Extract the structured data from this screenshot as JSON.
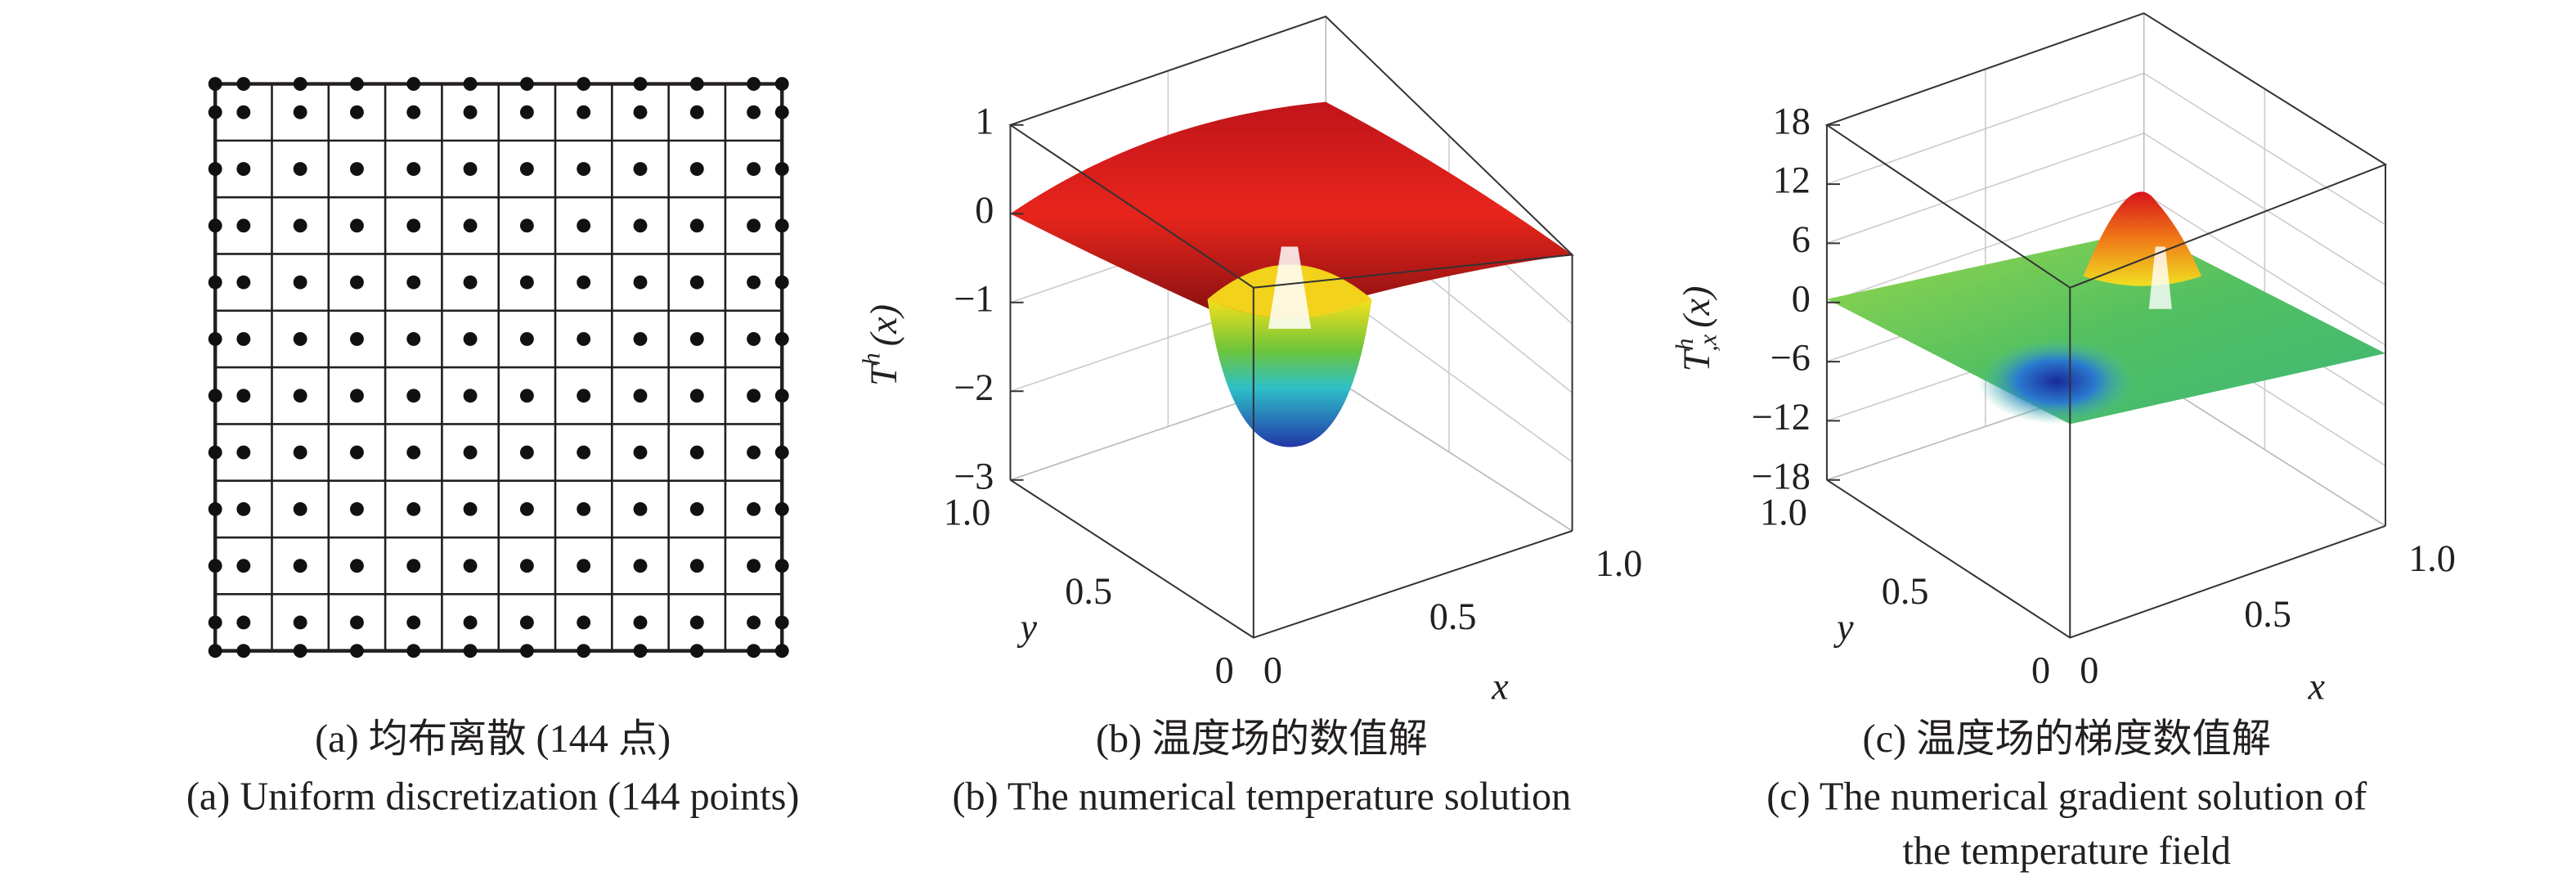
{
  "panels": [
    {
      "caption_cn": "(a) 均布离散 (144 点)",
      "caption_en": [
        "(a) Uniform discretization (144 points)"
      ]
    },
    {
      "caption_cn": "(b) 温度场的数值解",
      "caption_en": [
        "(b) The numerical temperature solution"
      ],
      "z_label": [
        "T",
        "h",
        "(x)"
      ],
      "z_ticks": [
        "1",
        "0",
        "−1",
        "−2",
        "−3"
      ],
      "y_label": "y",
      "y_ticks": [
        "1.0",
        "0.5",
        "0"
      ],
      "x_label": "x",
      "x_ticks": [
        "0",
        "0.5",
        "1.0"
      ]
    },
    {
      "caption_cn": "(c) 温度场的梯度数值解",
      "caption_en": [
        "(c) The numerical gradient solution of",
        "the temperature field"
      ],
      "z_label": [
        "T",
        "h",
        ",x",
        "(x)"
      ],
      "z_ticks": [
        "18",
        "12",
        "6",
        "0",
        "−6",
        "−12",
        "−18"
      ],
      "y_label": "y",
      "y_ticks": [
        "1.0",
        "0.5",
        "0"
      ],
      "x_label": "x",
      "x_ticks": [
        "0",
        "0.5",
        "1.0"
      ]
    }
  ]
}
